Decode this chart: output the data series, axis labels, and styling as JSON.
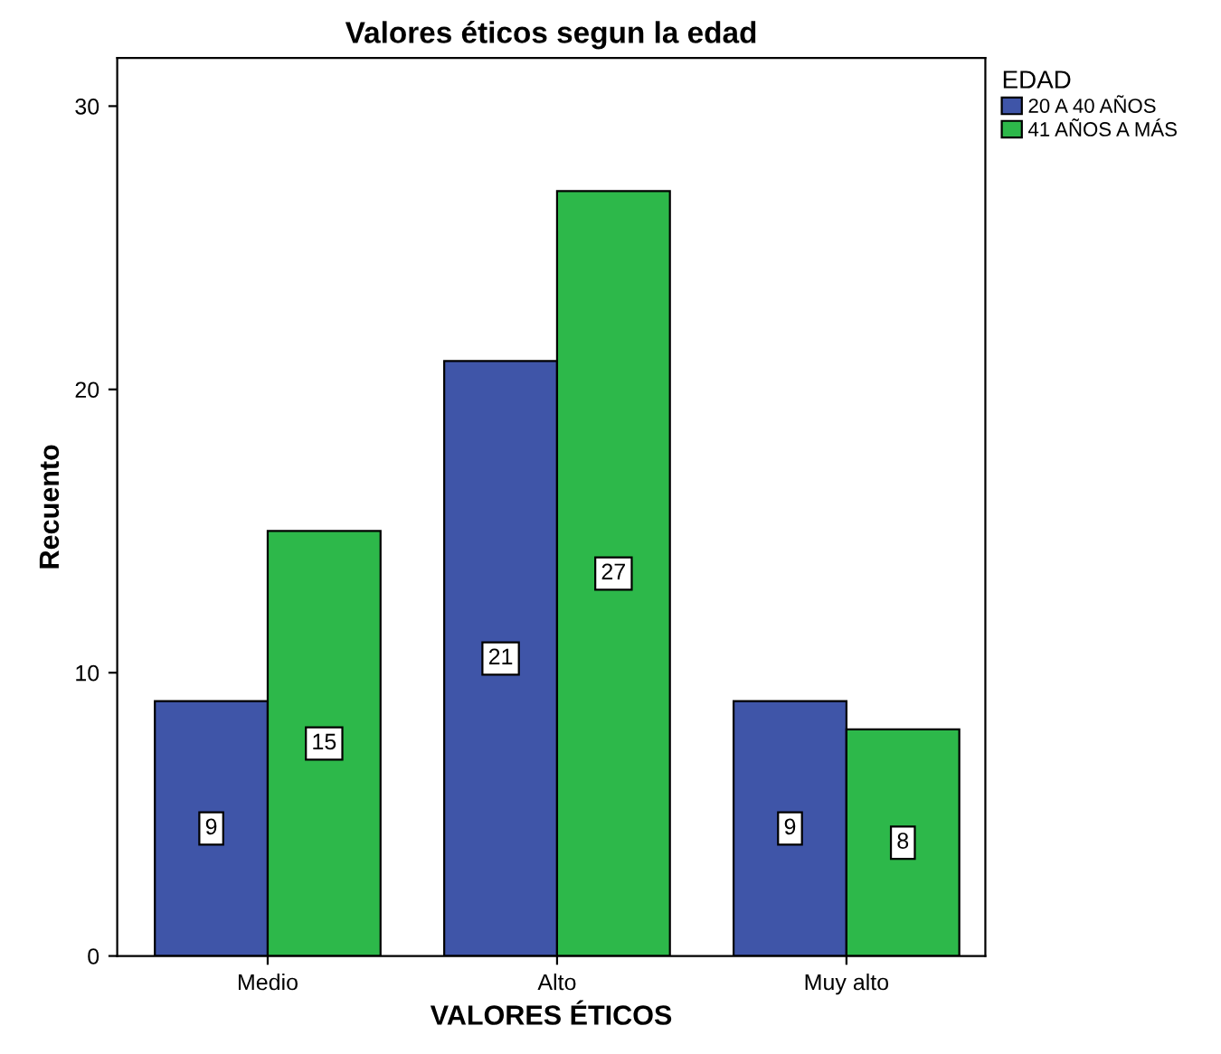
{
  "chart_data": {
    "type": "bar",
    "title": "Valores éticos segun la edad",
    "xlabel": "VALORES ÉTICOS",
    "ylabel": "Recuento",
    "legend_title": "EDAD",
    "categories": [
      "Medio",
      "Alto",
      "Muy alto"
    ],
    "series": [
      {
        "name": "20 A 40 AÑOS",
        "color": "#3f55a8",
        "values": [
          9,
          21,
          9
        ]
      },
      {
        "name": "41 AÑOS A MÁS",
        "color": "#2db84a",
        "values": [
          15,
          27,
          8
        ]
      }
    ],
    "ylim": [
      0,
      31.7
    ],
    "yticks": [
      0,
      10,
      20,
      30
    ],
    "grid": false,
    "legend": "top right",
    "data_labels": true
  }
}
